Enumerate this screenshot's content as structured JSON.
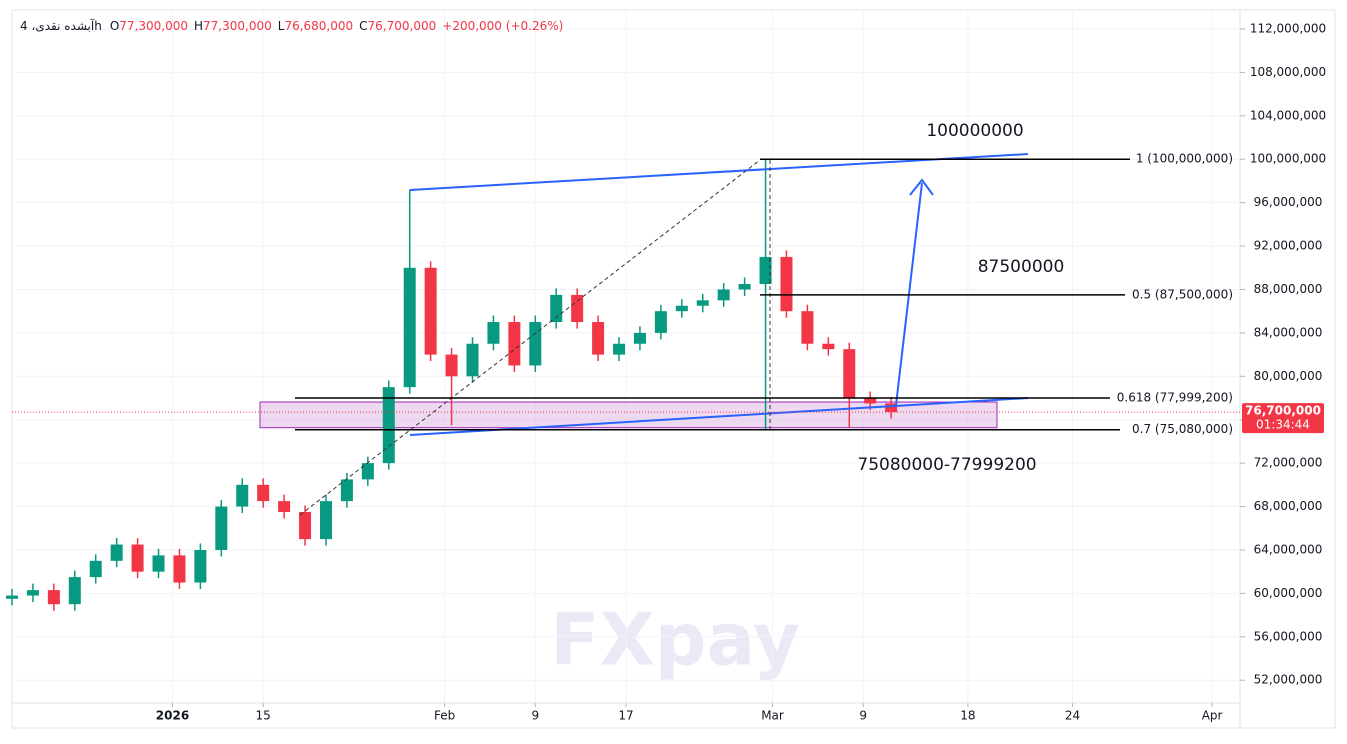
{
  "chart_data": {
    "type": "candlestick",
    "header": {
      "symbol": "آبشده نقدی، 4h",
      "items": [
        {
          "prefix": "O",
          "value": "77,300,000"
        },
        {
          "prefix": "H",
          "value": "77,300,000"
        },
        {
          "prefix": "L",
          "value": "76,680,000"
        },
        {
          "prefix": "C",
          "value": "76,700,000"
        }
      ],
      "change": "+200,000 (+0.26%)"
    },
    "x": [
      0,
      3,
      6,
      9,
      12,
      15,
      18,
      21,
      24,
      27,
      30,
      33,
      36,
      39,
      42,
      45,
      48,
      51,
      54,
      57,
      60,
      63,
      66,
      69,
      72,
      75,
      78,
      81,
      84,
      87,
      90,
      93,
      96,
      99,
      102,
      105,
      108,
      111,
      114,
      117,
      120,
      123,
      126
    ],
    "open": [
      59500000,
      59800000,
      60300000,
      59000000,
      61500000,
      63000000,
      64500000,
      62000000,
      63500000,
      61000000,
      64000000,
      68000000,
      70000000,
      68500000,
      67500000,
      65000000,
      68500000,
      70500000,
      72000000,
      79000000,
      90000000,
      82000000,
      80000000,
      83000000,
      85000000,
      81000000,
      85000000,
      87500000,
      85000000,
      82000000,
      83000000,
      84000000,
      86000000,
      86500000,
      87000000,
      88000000,
      88500000,
      91000000,
      86000000,
      83000000,
      82500000,
      78000000,
      77500000
    ],
    "high": [
      60400000,
      60900000,
      60900000,
      62100000,
      63600000,
      65100000,
      65100000,
      64100000,
      64100000,
      64600000,
      68600000,
      70600000,
      70600000,
      69100000,
      68100000,
      69100000,
      71100000,
      72600000,
      79600000,
      97200000,
      90600000,
      82600000,
      83600000,
      85600000,
      85600000,
      85600000,
      88100000,
      88100000,
      85600000,
      83600000,
      84600000,
      86600000,
      87100000,
      87600000,
      88600000,
      89100000,
      100000000,
      91600000,
      86600000,
      83600000,
      83100000,
      78600000,
      78100000
    ],
    "low": [
      58900000,
      59200000,
      58400000,
      58400000,
      60900000,
      62400000,
      61400000,
      61400000,
      60400000,
      60400000,
      63400000,
      67400000,
      67900000,
      66900000,
      64400000,
      64400000,
      67900000,
      69900000,
      71400000,
      78400000,
      81400000,
      75500000,
      79400000,
      82400000,
      80400000,
      80400000,
      84400000,
      84400000,
      81400000,
      81400000,
      82400000,
      83400000,
      85400000,
      85900000,
      86400000,
      87400000,
      75000000,
      85400000,
      82400000,
      81900000,
      75300000,
      76900000,
      76100000
    ],
    "close": [
      59800000,
      60300000,
      59000000,
      61500000,
      63000000,
      64500000,
      62000000,
      63500000,
      61000000,
      64000000,
      68000000,
      70000000,
      68500000,
      67500000,
      65000000,
      68500000,
      70500000,
      72000000,
      79000000,
      90000000,
      82000000,
      80000000,
      83000000,
      85000000,
      81000000,
      85000000,
      87500000,
      85000000,
      82000000,
      83000000,
      84000000,
      86000000,
      86500000,
      87000000,
      88000000,
      88500000,
      91000000,
      86000000,
      83000000,
      82500000,
      78000000,
      77500000,
      76700000
    ],
    "up_color": "#089981",
    "down_color": "#f23645",
    "xlim": [
      0,
      176
    ],
    "xticks": [
      {
        "value": 23,
        "label": "2026"
      },
      {
        "value": 36,
        "label": "15"
      },
      {
        "value": 62,
        "label": "Feb"
      },
      {
        "value": 75,
        "label": "9"
      },
      {
        "value": 88,
        "label": "17"
      },
      {
        "value": 109,
        "label": "Mar"
      },
      {
        "value": 122,
        "label": "9"
      },
      {
        "value": 137,
        "label": "18"
      },
      {
        "value": 152,
        "label": "24"
      },
      {
        "value": 172,
        "label": "Apr"
      }
    ],
    "ylim": [
      49900000,
      113750000
    ],
    "yticks": [
      {
        "value": 52000000,
        "label": "52,000,000"
      },
      {
        "value": 56000000,
        "label": "56,000,000"
      },
      {
        "value": 60000000,
        "label": "60,000,000"
      },
      {
        "value": 64000000,
        "label": "64,000,000"
      },
      {
        "value": 68000000,
        "label": "68,000,000"
      },
      {
        "value": 72000000,
        "label": "72,000,000"
      },
      {
        "value": 76000000,
        "label": "76,000,000"
      },
      {
        "value": 80000000,
        "label": "80,000,000"
      },
      {
        "value": 84000000,
        "label": "84,000,000"
      },
      {
        "value": 88000000,
        "label": "88,000,000"
      },
      {
        "value": 92000000,
        "label": "92,000,000"
      },
      {
        "value": 96000000,
        "label": "96,000,000"
      },
      {
        "value": 100000000,
        "label": "100,000,000"
      },
      {
        "value": 104000000,
        "label": "104,000,000"
      },
      {
        "value": 108000000,
        "label": "108,000,000"
      },
      {
        "value": 112000000,
        "label": "112,000,000"
      }
    ],
    "grid": true,
    "fib_levels": [
      {
        "label": "1 (100,000,000)",
        "value": 100000000
      },
      {
        "label": "0.5 (87,500,000)",
        "value": 87500000
      },
      {
        "label": "0.618 (77,999,200)",
        "value": 77999200
      },
      {
        "label": "0.7 (75,080,000)",
        "value": 75080000
      }
    ],
    "annotations": [
      "100000000",
      "87500000",
      "75080000-77999200"
    ],
    "price_tag": {
      "value": 76700000,
      "label": "76,700,000",
      "timer": "01:34:44"
    },
    "watermark": "FXpay"
  }
}
